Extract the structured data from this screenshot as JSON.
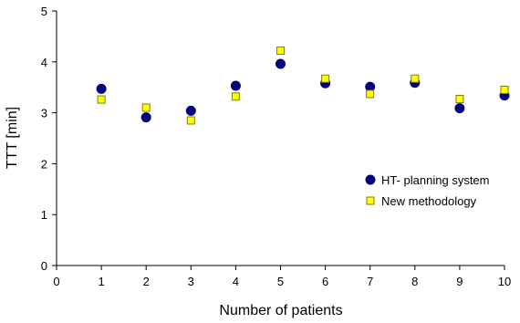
{
  "chart_data": {
    "type": "scatter",
    "title": "",
    "xlabel": "Number of patients",
    "ylabel": "TTT [min]",
    "xlim": [
      0,
      10
    ],
    "ylim": [
      0,
      5
    ],
    "xticks": [
      "0",
      "1",
      "2",
      "3",
      "4",
      "5",
      "6",
      "7",
      "8",
      "9",
      "10"
    ],
    "yticks": [
      "0",
      "1",
      "2",
      "3",
      "4",
      "5"
    ],
    "grid": false,
    "legend_position": "right",
    "x": [
      1,
      2,
      3,
      4,
      5,
      6,
      7,
      8,
      9,
      10
    ],
    "series": [
      {
        "name": "HT- planning system",
        "marker": "circle",
        "color": "#00007f",
        "edge_color": "#00007f",
        "values": [
          3.47,
          2.91,
          3.04,
          3.53,
          3.96,
          3.58,
          3.51,
          3.59,
          3.09,
          3.34
        ]
      },
      {
        "name": "New methodology",
        "marker": "square",
        "color": "#ffff00",
        "edge_color": "#7f7f00",
        "values": [
          3.26,
          3.1,
          2.85,
          3.32,
          4.22,
          3.67,
          3.37,
          3.67,
          3.27,
          3.45
        ]
      }
    ]
  }
}
